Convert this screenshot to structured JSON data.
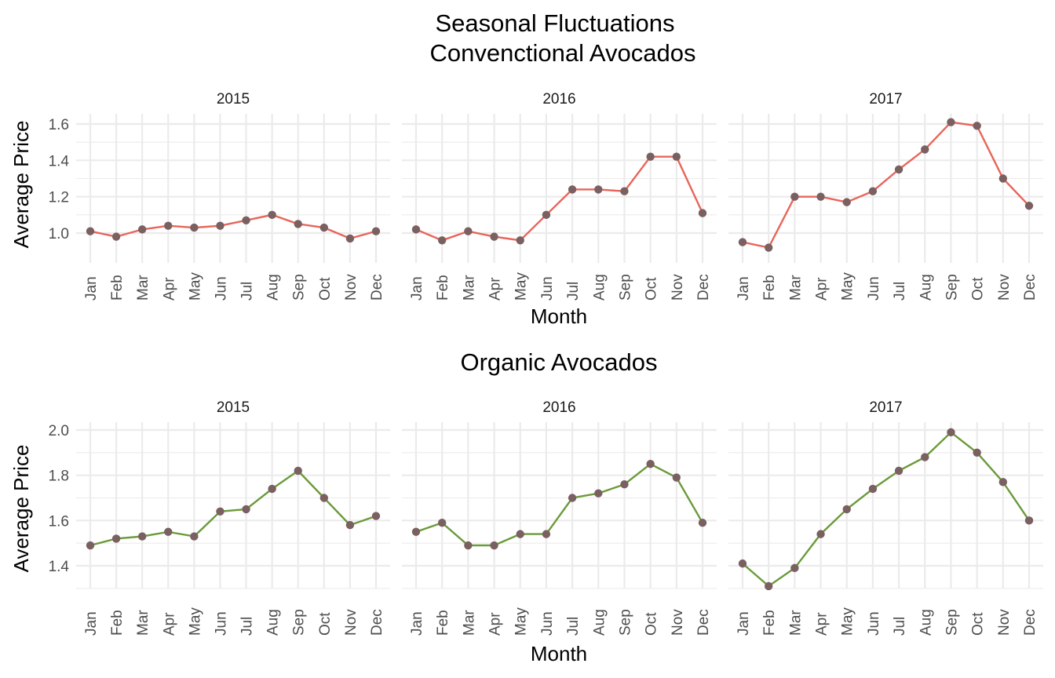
{
  "chart_data": [
    {
      "type": "line",
      "title_line1": "Seasonal Fluctuations",
      "title_line2": "Convenctional Avocados",
      "xlabel": "Month",
      "ylabel": "Average Price",
      "ylim": [
        0.9,
        1.65
      ],
      "yticks": [
        "1.0",
        "1.2",
        "1.4",
        "1.6"
      ],
      "line_color": "#e8655a",
      "point_color": "#7a6060",
      "categories": [
        "Jan",
        "Feb",
        "Mar",
        "Apr",
        "May",
        "Jun",
        "Jul",
        "Aug",
        "Sep",
        "Oct",
        "Nov",
        "Dec"
      ],
      "panels": [
        {
          "label": "2015",
          "values": [
            1.01,
            0.98,
            1.02,
            1.04,
            1.03,
            1.04,
            1.07,
            1.1,
            1.05,
            1.03,
            0.97,
            1.01
          ]
        },
        {
          "label": "2016",
          "values": [
            1.02,
            0.96,
            1.01,
            0.98,
            0.96,
            1.1,
            1.24,
            1.24,
            1.23,
            1.42,
            1.42,
            1.11
          ]
        },
        {
          "label": "2017",
          "values": [
            0.95,
            0.92,
            1.2,
            1.2,
            1.17,
            1.23,
            1.35,
            1.46,
            1.61,
            1.59,
            1.3,
            1.15
          ]
        }
      ]
    },
    {
      "type": "line",
      "title": "Organic Avocados",
      "xlabel": "Month",
      "ylabel": "Average Price",
      "ylim": [
        1.28,
        2.02
      ],
      "yticks": [
        "1.4",
        "1.6",
        "1.8",
        "2.0"
      ],
      "line_color": "#6b9a3a",
      "point_color": "#7a6060",
      "categories": [
        "Jan",
        "Feb",
        "Mar",
        "Apr",
        "May",
        "Jun",
        "Jul",
        "Aug",
        "Sep",
        "Oct",
        "Nov",
        "Dec"
      ],
      "panels": [
        {
          "label": "2015",
          "values": [
            1.49,
            1.52,
            1.53,
            1.55,
            1.53,
            1.64,
            1.65,
            1.74,
            1.82,
            1.7,
            1.58,
            1.62
          ]
        },
        {
          "label": "2016",
          "values": [
            1.55,
            1.59,
            1.49,
            1.49,
            1.54,
            1.54,
            1.7,
            1.72,
            1.76,
            1.85,
            1.79,
            1.59
          ]
        },
        {
          "label": "2017",
          "values": [
            1.41,
            1.31,
            1.39,
            1.54,
            1.65,
            1.74,
            1.82,
            1.88,
            1.99,
            1.9,
            1.77,
            1.6
          ]
        }
      ]
    }
  ]
}
